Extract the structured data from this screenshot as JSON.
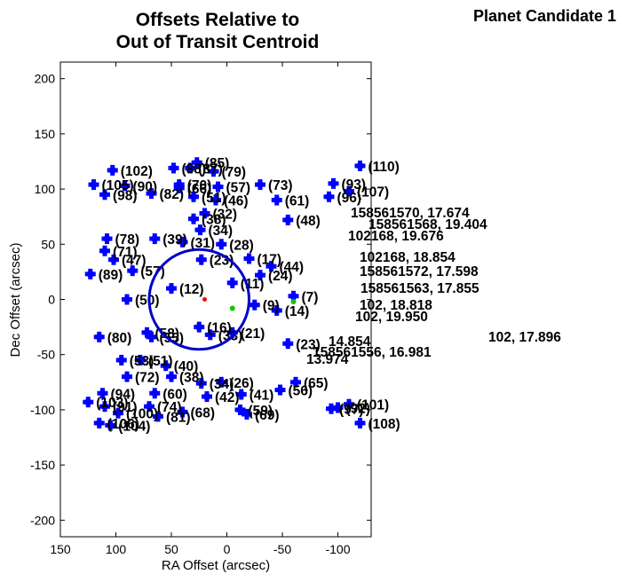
{
  "header": {
    "title_line1": "Offsets Relative to",
    "title_line2": "Out of Transit Centroid",
    "candidate": "Planet Candidate 1"
  },
  "colors": {
    "marker": "#0000ff",
    "circle": "#0000c8",
    "green_marker": "#00cc00",
    "red_marker": "#ff0000",
    "axes": "#000000"
  },
  "chart_data": {
    "type": "scatter",
    "title": "Offsets Relative to Out of Transit Centroid",
    "xlabel": "RA Offset (arcsec)",
    "ylabel": "Dec Offset (arcsec)",
    "xlim": [
      150,
      -130
    ],
    "ylim": [
      -215,
      215
    ],
    "x_reversed": true,
    "xticks": [
      150,
      100,
      50,
      0,
      -50,
      -100
    ],
    "xtick_labels": [
      "150",
      "100",
      "50",
      "0",
      "-50",
      "-100"
    ],
    "yticks": [
      200,
      150,
      100,
      50,
      0,
      -50,
      -100,
      -150,
      -200
    ],
    "ytick_labels": [
      "200",
      "150",
      "100",
      "50",
      "0",
      "-50",
      "-100",
      "-150",
      "-200"
    ],
    "grid": false,
    "circle": {
      "center": [
        25,
        0
      ],
      "radius": 45
    },
    "points": [
      {
        "x": 103,
        "y": 117,
        "label": "(102)"
      },
      {
        "x": 27,
        "y": 124,
        "label": "(85)"
      },
      {
        "x": 12,
        "y": 116,
        "label": "(79)"
      },
      {
        "x": -120,
        "y": 121,
        "label": "(110)"
      },
      {
        "x": 48,
        "y": 119,
        "label": "(88)"
      },
      {
        "x": 33,
        "y": 119,
        "label": "(87)"
      },
      {
        "x": 120,
        "y": 104,
        "label": "(105)"
      },
      {
        "x": 92,
        "y": 103,
        "label": "(90)"
      },
      {
        "x": 110,
        "y": 95,
        "label": "(98)"
      },
      {
        "x": 68,
        "y": 96,
        "label": "(82)"
      },
      {
        "x": 43,
        "y": 104,
        "label": "(70)"
      },
      {
        "x": 43,
        "y": 101,
        "label": "(66)"
      },
      {
        "x": 8,
        "y": 102,
        "label": "(57)"
      },
      {
        "x": -30,
        "y": 104,
        "label": "(73)"
      },
      {
        "x": -96,
        "y": 105,
        "label": "(93)"
      },
      {
        "x": -110,
        "y": 98,
        "label": "(107)"
      },
      {
        "x": -92,
        "y": 93,
        "label": "(96)"
      },
      {
        "x": 30,
        "y": 93,
        "label": "(51)"
      },
      {
        "x": 10,
        "y": 90,
        "label": "(46)"
      },
      {
        "x": -45,
        "y": 90,
        "label": "(61)"
      },
      {
        "x": 20,
        "y": 78,
        "label": "(32)"
      },
      {
        "x": 108,
        "y": 55,
        "label": "(78)"
      },
      {
        "x": 65,
        "y": 55,
        "label": "(39)"
      },
      {
        "x": 24,
        "y": 63,
        "label": "(34)"
      },
      {
        "x": 110,
        "y": 44,
        "label": "(71)"
      },
      {
        "x": 102,
        "y": 36,
        "label": "(47)"
      },
      {
        "x": 123,
        "y": 23,
        "label": "(89)"
      },
      {
        "x": 85,
        "y": 26,
        "label": "(57)"
      },
      {
        "x": 90,
        "y": 0,
        "label": "(50)"
      },
      {
        "x": 50,
        "y": 10,
        "label": "(12)"
      },
      {
        "x": 72,
        "y": -30,
        "label": "(58)"
      },
      {
        "x": 115,
        "y": -34,
        "label": "(80)"
      },
      {
        "x": 68,
        "y": -34,
        "label": "(55)"
      },
      {
        "x": 95,
        "y": -55,
        "label": "(53)"
      },
      {
        "x": 78,
        "y": -55,
        "label": "(51)"
      },
      {
        "x": 55,
        "y": -60,
        "label": "(40)"
      },
      {
        "x": 90,
        "y": -70,
        "label": "(72)"
      },
      {
        "x": 50,
        "y": -70,
        "label": "(38)"
      },
      {
        "x": 23,
        "y": -76,
        "label": "(34)"
      },
      {
        "x": 5,
        "y": -75,
        "label": "(26)"
      },
      {
        "x": -62,
        "y": -75,
        "label": "(65)"
      },
      {
        "x": 112,
        "y": -85,
        "label": "(94)"
      },
      {
        "x": 65,
        "y": -85,
        "label": "(60)"
      },
      {
        "x": 18,
        "y": -88,
        "label": "(42)"
      },
      {
        "x": -13,
        "y": -86,
        "label": "(41)"
      },
      {
        "x": -48,
        "y": -82,
        "label": "(56)"
      },
      {
        "x": 125,
        "y": -93,
        "label": "(103)"
      },
      {
        "x": 110,
        "y": -97,
        "label": "(91)"
      },
      {
        "x": 70,
        "y": -97,
        "label": "(74)"
      },
      {
        "x": -94,
        "y": -99,
        "label": "(97)"
      },
      {
        "x": -110,
        "y": -95,
        "label": "(101)"
      },
      {
        "x": -100,
        "y": -98,
        "label": "(92)"
      },
      {
        "x": 98,
        "y": -103,
        "label": "(100)"
      },
      {
        "x": 40,
        "y": -102,
        "label": "(68)"
      },
      {
        "x": -12,
        "y": -100,
        "label": "(59)"
      },
      {
        "x": 115,
        "y": -112,
        "label": "(106)"
      },
      {
        "x": 105,
        "y": -114,
        "label": "(104)"
      },
      {
        "x": 62,
        "y": -106,
        "label": "(81)"
      },
      {
        "x": -18,
        "y": -104,
        "label": "(69)"
      },
      {
        "x": -120,
        "y": -112,
        "label": "(108)"
      },
      {
        "x": 23,
        "y": 36,
        "label": "(23)"
      },
      {
        "x": -20,
        "y": 37,
        "label": "(17)"
      },
      {
        "x": -40,
        "y": 30,
        "label": "(44)"
      },
      {
        "x": -5,
        "y": 15,
        "label": "(11)"
      },
      {
        "x": -25,
        "y": -5,
        "label": "(9)"
      },
      {
        "x": -45,
        "y": -10,
        "label": "(14)"
      },
      {
        "x": -60,
        "y": 3,
        "label": "(7)"
      },
      {
        "x": 25,
        "y": -25,
        "label": "(16)"
      },
      {
        "x": -5,
        "y": -30,
        "label": "(21)"
      },
      {
        "x": -55,
        "y": -40,
        "label": "(23)"
      },
      {
        "x": 30,
        "y": 73,
        "label": "(38)"
      },
      {
        "x": -55,
        "y": 72,
        "label": "(48)"
      },
      {
        "x": 40,
        "y": 52,
        "label": "(31)"
      },
      {
        "x": 5,
        "y": 50,
        "label": "(28)"
      },
      {
        "x": -30,
        "y": 22,
        "label": "(24)"
      },
      {
        "x": 15,
        "y": -32,
        "label": "(33)"
      }
    ],
    "annotations": [
      "158561570, 17.674",
      "158561568, 19.404",
      "102168, 19.676",
      "102168, 18.854",
      "158561572, 17.598",
      "158561563, 17.855",
      "158561556, 16.981",
      "102, 18.818",
      "102, 19.950",
      "102, 17.896",
      "13.974",
      "14.854"
    ]
  }
}
